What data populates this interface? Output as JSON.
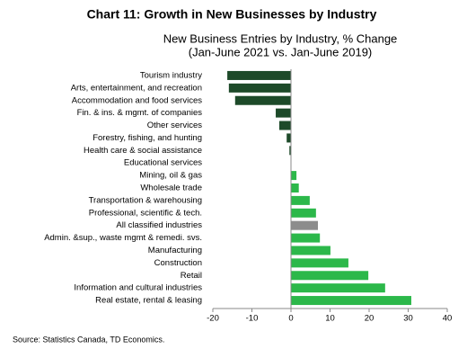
{
  "chart_data": {
    "type": "hbar",
    "title": "Chart 11: Growth in New Businesses by Industry",
    "subtitle": [
      "New Business Entries by Industry, % Change",
      "(Jan-June 2021 vs. Jan-June 2019)"
    ],
    "source": "Source: Statistics Canada, TD Economics.",
    "categories": [
      "Tourism industry",
      "Arts, entertainment, and recreation",
      "Accommodation and food services",
      "Fin. & ins. & mgmt. of companies",
      "Other services",
      "Forestry, fishing, and hunting",
      "Health care & social assistance",
      "Educational services",
      "Mining, oil & gas",
      "Wholesale trade",
      "Transportation & warehousing",
      "Professional, scientific & tech.",
      "All classified industries",
      "Admin. &sup., waste mgmt & remedi. svs.",
      "Manufacturing",
      "Construction",
      "Retail",
      "Information and cultural industries",
      "Real estate, rental & leasing"
    ],
    "values": [
      -16.3,
      -15.9,
      -14.3,
      -3.9,
      -3.0,
      -1.1,
      -0.4,
      0.1,
      1.4,
      2.0,
      4.8,
      6.4,
      6.9,
      7.4,
      10.1,
      14.7,
      19.8,
      24.1,
      30.8
    ],
    "colors": [
      "#1d4a29",
      "#1d4a29",
      "#1d4a29",
      "#1d4a29",
      "#1d4a29",
      "#1d4a29",
      "#1d4a29",
      "#1d4a29",
      "#2cb84a",
      "#2cb84a",
      "#2cb84a",
      "#2cb84a",
      "#8c8c8c",
      "#2cb84a",
      "#2cb84a",
      "#2cb84a",
      "#2cb84a",
      "#2cb84a",
      "#2cb84a"
    ],
    "xlim": [
      -20,
      40
    ],
    "xticks": [
      -20,
      -10,
      0,
      10,
      20,
      30,
      40
    ],
    "grid": false
  }
}
